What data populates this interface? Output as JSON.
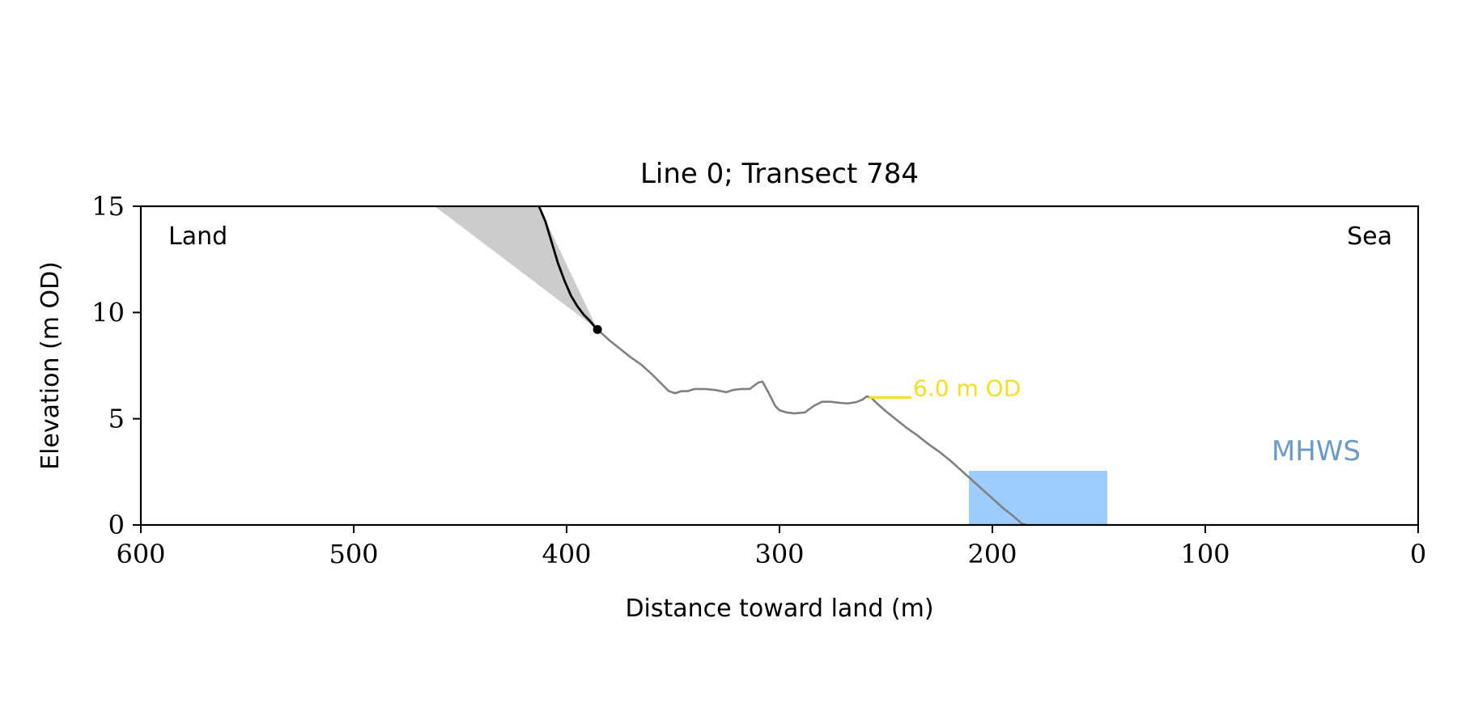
{
  "chart_data": {
    "type": "line",
    "title": "Line 0; Transect 784",
    "xlabel": "Distance toward land (m)",
    "ylabel": "Elevation (m OD)",
    "xlim": [
      600,
      0
    ],
    "ylim": [
      0,
      15
    ],
    "x_ticks": [
      600,
      500,
      400,
      300,
      200,
      100,
      0
    ],
    "y_ticks": [
      0,
      5,
      10,
      15
    ],
    "x_tick_labels": [
      "600",
      "500",
      "400",
      "300",
      "200",
      "100",
      "0"
    ],
    "y_tick_labels": [
      "0",
      "5",
      "10",
      "15"
    ],
    "grid": false,
    "annotations": {
      "land": "Land",
      "sea": "Sea",
      "mhws_label": "MHWS",
      "contour_label": "6.0 m OD"
    },
    "colors": {
      "profile": "#808080",
      "cliff": "#000000",
      "shade": "#cccccc",
      "mhws": "#9dcdff",
      "mhws_text": "#6b9ac4",
      "contour": "#f5df1e"
    },
    "profile": {
      "x": [
        385.5,
        380,
        375,
        370,
        365,
        360,
        355,
        352,
        349,
        346,
        343,
        340,
        335,
        330,
        325,
        322,
        318,
        314,
        310,
        308,
        305,
        302,
        300,
        297,
        293,
        288,
        284,
        280,
        276,
        272,
        268,
        264,
        261,
        259,
        257,
        254,
        250,
        245,
        240,
        235,
        230,
        225,
        220,
        215,
        210,
        205,
        200,
        195,
        190,
        186,
        184
      ],
      "y": [
        9.2,
        8.7,
        8.3,
        7.9,
        7.55,
        7.1,
        6.6,
        6.3,
        6.2,
        6.3,
        6.3,
        6.4,
        6.4,
        6.35,
        6.25,
        6.35,
        6.4,
        6.4,
        6.7,
        6.75,
        6.2,
        5.6,
        5.4,
        5.3,
        5.25,
        5.3,
        5.6,
        5.8,
        5.8,
        5.75,
        5.72,
        5.78,
        5.9,
        6.05,
        6.0,
        5.7,
        5.35,
        4.95,
        4.55,
        4.2,
        3.8,
        3.45,
        3.05,
        2.6,
        2.15,
        1.7,
        1.25,
        0.8,
        0.4,
        0.05,
        0.0
      ]
    },
    "cliff": {
      "x": [
        413,
        410,
        407,
        404,
        401,
        398,
        395,
        392,
        389,
        387,
        385.5
      ],
      "y": [
        15,
        14.3,
        13.3,
        12.3,
        11.5,
        10.8,
        10.3,
        9.9,
        9.6,
        9.35,
        9.2
      ]
    },
    "cliff_toe": {
      "x": 385.5,
      "y": 9.2
    },
    "shaded_wedge": {
      "x": [
        462,
        413,
        385.5
      ],
      "y": [
        15,
        15,
        9.2
      ]
    },
    "mhws_zone": {
      "x_start": 211,
      "x_end": 146,
      "y_bottom": 0,
      "y_top": 2.55
    },
    "contour_6m": {
      "x_start": 258,
      "x_end": 238,
      "y": 6.0
    }
  }
}
